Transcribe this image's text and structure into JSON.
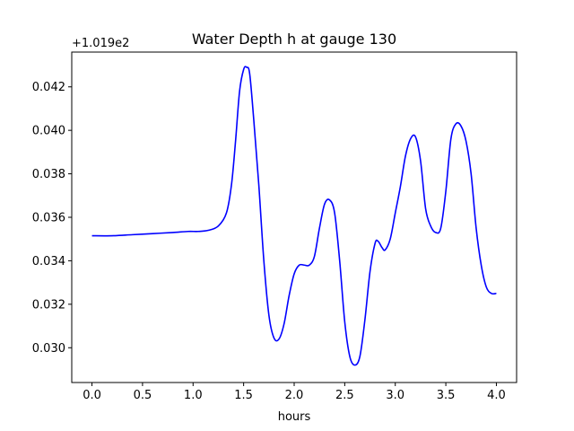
{
  "chart_data": {
    "type": "line",
    "title": "Water Depth h at gauge 130",
    "xlabel": "hours",
    "ylabel": "",
    "y_offset_label": "+1.019e2",
    "xlim": [
      -0.2,
      4.2
    ],
    "ylim": [
      0.0284,
      0.0436
    ],
    "grid": false,
    "x_ticks": [
      0.0,
      0.5,
      1.0,
      1.5,
      2.0,
      2.5,
      3.0,
      3.5,
      4.0
    ],
    "x_tick_labels": [
      "0.0",
      "0.5",
      "1.0",
      "1.5",
      "2.0",
      "2.5",
      "3.0",
      "3.5",
      "4.0"
    ],
    "y_ticks": [
      0.03,
      0.032,
      0.034,
      0.036,
      0.038,
      0.04,
      0.042
    ],
    "y_tick_labels": [
      "0.030",
      "0.032",
      "0.034",
      "0.036",
      "0.038",
      "0.040",
      "0.042"
    ],
    "series": [
      {
        "color": "#0000ff",
        "x": [
          0.0,
          0.2,
          0.4,
          0.6,
          0.8,
          0.95,
          1.05,
          1.15,
          1.25,
          1.33,
          1.38,
          1.42,
          1.46,
          1.5,
          1.53,
          1.56,
          1.6,
          1.65,
          1.7,
          1.75,
          1.8,
          1.85,
          1.9,
          1.95,
          2.0,
          2.05,
          2.1,
          2.15,
          2.2,
          2.25,
          2.3,
          2.35,
          2.4,
          2.45,
          2.5,
          2.55,
          2.6,
          2.65,
          2.7,
          2.75,
          2.8,
          2.83,
          2.87,
          2.9,
          2.95,
          3.0,
          3.05,
          3.1,
          3.15,
          3.2,
          3.25,
          3.3,
          3.35,
          3.4,
          3.45,
          3.5,
          3.55,
          3.6,
          3.65,
          3.7,
          3.75,
          3.8,
          3.85,
          3.9,
          3.95,
          4.0
        ],
        "y": [
          0.03515,
          0.03515,
          0.0352,
          0.03525,
          0.0353,
          0.03535,
          0.03535,
          0.0354,
          0.0356,
          0.0362,
          0.0375,
          0.0395,
          0.0418,
          0.0428,
          0.0429,
          0.0426,
          0.0405,
          0.0375,
          0.034,
          0.0315,
          0.03045,
          0.0304,
          0.0311,
          0.0324,
          0.0334,
          0.0338,
          0.0338,
          0.0338,
          0.0342,
          0.0355,
          0.0366,
          0.0368,
          0.0362,
          0.034,
          0.0312,
          0.0296,
          0.0292,
          0.0296,
          0.0313,
          0.0335,
          0.0348,
          0.0349,
          0.0346,
          0.0345,
          0.035,
          0.0362,
          0.0374,
          0.0388,
          0.0396,
          0.0397,
          0.0386,
          0.0364,
          0.0356,
          0.0353,
          0.0355,
          0.0372,
          0.0396,
          0.0403,
          0.0402,
          0.0395,
          0.038,
          0.0355,
          0.0338,
          0.0328,
          0.0325,
          0.0325
        ]
      }
    ]
  }
}
